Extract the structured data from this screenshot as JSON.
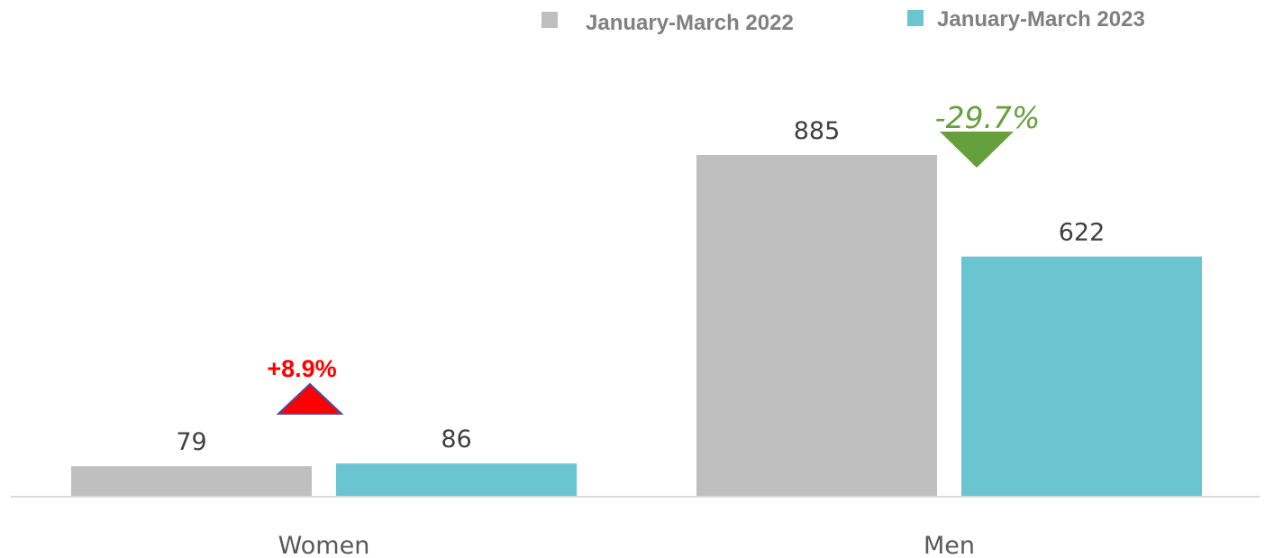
{
  "chart_data": {
    "type": "bar",
    "categories": [
      "Women",
      "Men"
    ],
    "series": [
      {
        "name": "January-March 2022",
        "values": [
          79,
          885
        ],
        "color": "#bfbfbf"
      },
      {
        "name": "January-March 2023",
        "values": [
          86,
          622
        ],
        "color": "#6bc5d0"
      }
    ],
    "data_labels": [
      [
        "79",
        "885"
      ],
      [
        "86",
        "622"
      ]
    ],
    "changes": [
      {
        "category": "Women",
        "label": "+8.9%",
        "direction": "up",
        "color": "#ff0000"
      },
      {
        "category": "Men",
        "label": "-29.7%",
        "direction": "down",
        "color": "#66a03c"
      }
    ],
    "title": "",
    "xlabel": "",
    "ylabel": "",
    "ylim": [
      0,
      885
    ],
    "legend_position": "top-right",
    "grid": false
  }
}
